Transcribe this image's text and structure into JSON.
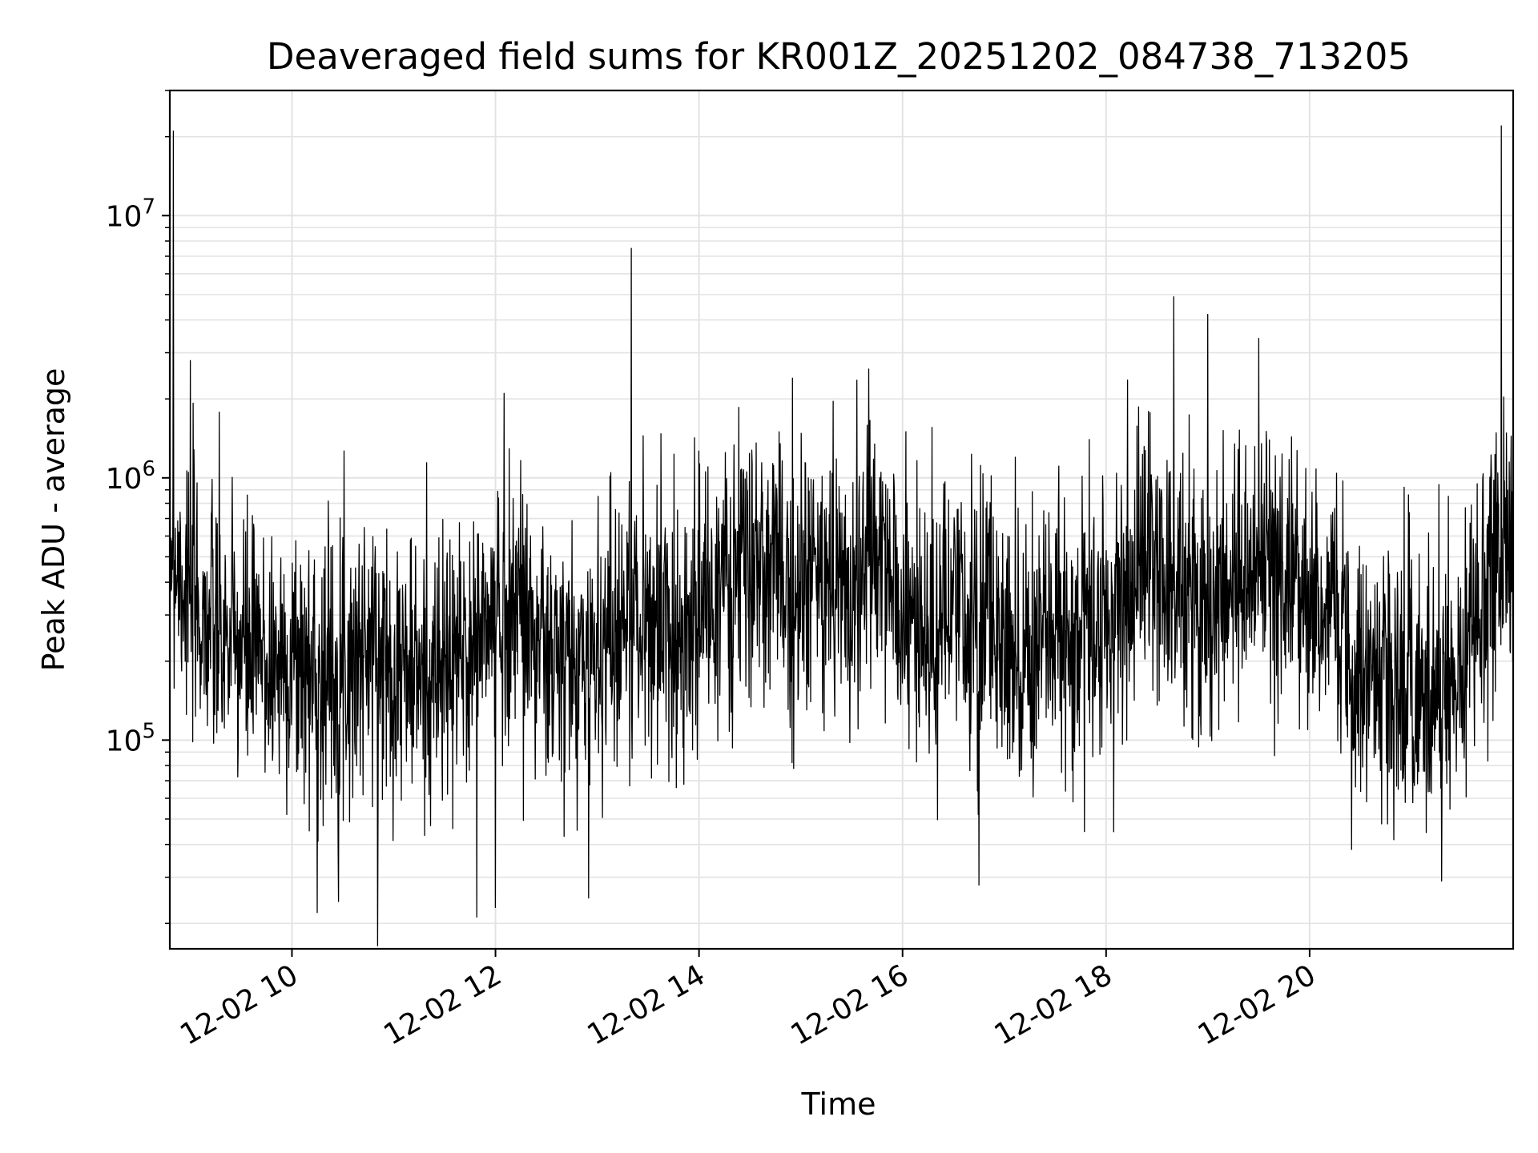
{
  "chart_data": {
    "type": "line",
    "title": "Deaveraged field sums for KR001Z_20251202_084738_713205",
    "xlabel": "Time",
    "ylabel": "Peak ADU - average",
    "yscale": "log",
    "grid": true,
    "line_color": "#000000",
    "xlim": [
      "12-02 08:48",
      "12-02 22:00"
    ],
    "ylim": [
      16000,
      30000000
    ],
    "x_ticks": [
      "12-02 10",
      "12-02 12",
      "12-02 14",
      "12-02 16",
      "12-02 18",
      "12-02 20"
    ],
    "y_ticks": [
      {
        "base": "10",
        "exp": "5",
        "value": 100000
      },
      {
        "base": "10",
        "exp": "6",
        "value": 1000000
      },
      {
        "base": "10",
        "exp": "7",
        "value": 10000000
      }
    ],
    "series": [
      {
        "x": [
          "12-02 08:48",
          "12-02 09:00",
          "12-02 09:15",
          "12-02 09:30",
          "12-02 09:45",
          "12-02 10:00",
          "12-02 10:15",
          "12-02 10:30",
          "12-02 10:45",
          "12-02 11:00",
          "12-02 11:15",
          "12-02 11:30",
          "12-02 11:45",
          "12-02 12:00",
          "12-02 12:15",
          "12-02 12:30",
          "12-02 12:45",
          "12-02 13:00",
          "12-02 13:15",
          "12-02 13:30",
          "12-02 13:45",
          "12-02 14:00",
          "12-02 14:15",
          "12-02 14:30",
          "12-02 14:45",
          "12-02 15:00",
          "12-02 15:15",
          "12-02 15:30",
          "12-02 15:45",
          "12-02 16:00",
          "12-02 16:15",
          "12-02 16:30",
          "12-02 16:45",
          "12-02 17:00",
          "12-02 17:15",
          "12-02 17:30",
          "12-02 17:45",
          "12-02 18:00",
          "12-02 18:15",
          "12-02 18:30",
          "12-02 18:45",
          "12-02 19:00",
          "12-02 19:15",
          "12-02 19:30",
          "12-02 19:45",
          "12-02 20:00",
          "12-02 20:15",
          "12-02 20:30",
          "12-02 20:45",
          "12-02 21:00",
          "12-02 21:15",
          "12-02 21:30",
          "12-02 21:45",
          "12-02 22:00"
        ],
        "values": [
          600000,
          350000,
          250000,
          220000,
          200000,
          200000,
          180000,
          200000,
          220000,
          200000,
          170000,
          180000,
          220000,
          300000,
          350000,
          200000,
          180000,
          230000,
          300000,
          280000,
          260000,
          300000,
          380000,
          450000,
          420000,
          380000,
          420000,
          400000,
          500000,
          300000,
          250000,
          280000,
          300000,
          250000,
          220000,
          240000,
          260000,
          250000,
          450000,
          500000,
          380000,
          300000,
          420000,
          450000,
          380000,
          380000,
          300000,
          200000,
          180000,
          170000,
          160000,
          200000,
          400000,
          600000
        ]
      }
    ],
    "spikes": [
      {
        "x": "12-02 08:50",
        "value": 21000000
      },
      {
        "x": "12-02 09:00",
        "value": 2800000
      },
      {
        "x": "12-02 10:15",
        "value": 22000
      },
      {
        "x": "12-02 12:00",
        "value": 23000
      },
      {
        "x": "12-02 12:05",
        "value": 2100000
      },
      {
        "x": "12-02 12:55",
        "value": 25000
      },
      {
        "x": "12-02 13:20",
        "value": 7500000
      },
      {
        "x": "12-02 14:55",
        "value": 2400000
      },
      {
        "x": "12-02 15:40",
        "value": 2600000
      },
      {
        "x": "12-02 16:45",
        "value": 28000
      },
      {
        "x": "12-02 18:40",
        "value": 4900000
      },
      {
        "x": "12-02 19:00",
        "value": 4200000
      },
      {
        "x": "12-02 19:30",
        "value": 3400000
      },
      {
        "x": "12-02 21:53",
        "value": 22000000
      }
    ]
  }
}
